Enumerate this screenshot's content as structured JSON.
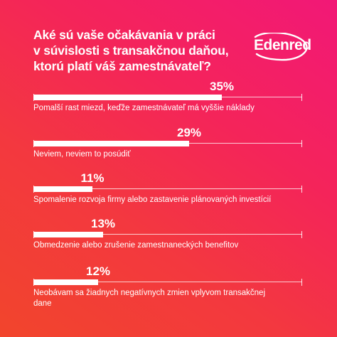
{
  "title": "Aké sú vaše očakávania v práci\nv súvislosti s transakčnou daňou,\nktorú platí váš zamestnávateľ?",
  "logo": {
    "text": "Edenred",
    "color": "#ffffff"
  },
  "colors": {
    "background_start": "#f2452c",
    "background_end": "#f21877",
    "bar": "#ffffff"
  },
  "chart_data": {
    "type": "bar",
    "orientation": "horizontal",
    "categories": [
      "Pomalší rast miezd, keďže zamestnávateľ má vyššie náklady",
      "Neviem, neviem to posúdiť",
      "Spomalenie rozvoja firmy alebo zastavenie plánovaných investícií",
      "Obmedzenie alebo zrušenie zamestnaneckých benefitov",
      "Neobávam sa žiadnych negatívnych zmien vplyvom transakčnej dane"
    ],
    "values": [
      35,
      29,
      11,
      13,
      12
    ],
    "value_labels": [
      "35%",
      "29%",
      "11%",
      "13%",
      "12%"
    ],
    "xlim": [
      0,
      50
    ],
    "grid": false,
    "legend": "none"
  }
}
